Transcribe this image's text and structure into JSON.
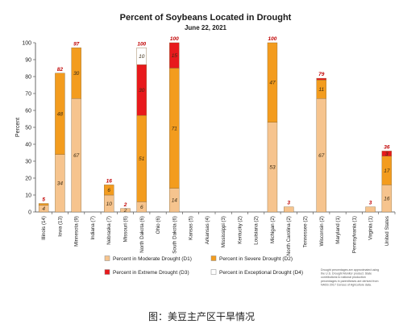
{
  "chart_data": {
    "type": "bar",
    "stacked": true,
    "title": "Percent of Soybeans Located in Drought",
    "subtitle": "June 22, 2021",
    "ylabel": "Percent",
    "ylim": [
      0,
      100
    ],
    "yticks": [
      0,
      10,
      20,
      30,
      40,
      50,
      60,
      70,
      80,
      90,
      100
    ],
    "grid": false,
    "categories": [
      "Illinois (14)",
      "Iowa (13)",
      "Minnesota (9)",
      "Indiana (7)",
      "Nebraska (7)",
      "Missouri (6)",
      "North Dakota (6)",
      "Ohio (6)",
      "South Dakota (6)",
      "Kansas (5)",
      "Arkansas (4)",
      "Mississippi (3)",
      "Kentucky (2)",
      "Louisiana (2)",
      "Michigan (2)",
      "North Carolina (2)",
      "Tennessee (2)",
      "Wisconsin (2)",
      "Maryland (1)",
      "Pennsylvania (1)",
      "Virginia (1)",
      "United States"
    ],
    "series": [
      {
        "name": "Percent in Moderate Drought (D1)",
        "color": "#f6c48e",
        "values": [
          4,
          34,
          67,
          0,
          10,
          2,
          6,
          0,
          14,
          0,
          0,
          0,
          0,
          0,
          53,
          3,
          0,
          67,
          0,
          0,
          3,
          16
        ]
      },
      {
        "name": "Percent in Severe Drought (D2)",
        "color": "#f39c1e",
        "values": [
          1,
          48,
          30,
          0,
          6,
          0,
          51,
          0,
          71,
          0,
          0,
          0,
          0,
          0,
          47,
          0,
          0,
          11,
          0,
          0,
          0,
          17
        ]
      },
      {
        "name": "Percent in Extreme Drought (D3)",
        "color": "#e8191c",
        "values": [
          0,
          0,
          0,
          0,
          0,
          0,
          30,
          0,
          15,
          0,
          0,
          0,
          0,
          0,
          0,
          0,
          0,
          1,
          0,
          0,
          0,
          3
        ]
      },
      {
        "name": "Percent in Exceptional Drought (D4)",
        "color": "#ffffff",
        "values": [
          0,
          0,
          0,
          0,
          0,
          0,
          10,
          0,
          0,
          0,
          0,
          0,
          0,
          0,
          0,
          0,
          0,
          0,
          0,
          0,
          0,
          0
        ]
      }
    ],
    "segment_labels": [
      [
        "4",
        "34",
        "67",
        "",
        "10",
        "2",
        "6",
        "",
        "14",
        "",
        "",
        "",
        "",
        "",
        "53",
        "",
        "",
        "67",
        "",
        "",
        "",
        "16"
      ],
      [
        "",
        "48",
        "30",
        "",
        "6",
        "",
        "51",
        "",
        "71",
        "",
        "",
        "",
        "",
        "",
        "47",
        "",
        "",
        "11",
        "",
        "",
        "",
        "17"
      ],
      [
        "",
        "",
        "",
        "",
        "",
        "",
        "30",
        "",
        "15",
        "",
        "",
        "",
        "",
        "",
        "",
        "",
        "",
        "",
        "",
        "",
        "",
        "3"
      ],
      [
        "",
        "",
        "",
        "",
        "",
        "",
        "10",
        "",
        "",
        "",
        "",
        "",
        "",
        "",
        "",
        "",
        "",
        "",
        "",
        "",
        "",
        ""
      ]
    ],
    "totals": [
      "5",
      "82",
      "97",
      "",
      "16",
      "2",
      "100",
      "",
      "100",
      "",
      "",
      "",
      "",
      "",
      "100",
      "3",
      "",
      "79",
      "",
      "",
      "3",
      "36"
    ],
    "legend_position": "bottom",
    "note": "Drought percentages are approximated using the U.S. Drought Monitor product. State contributions to national production percentages in parentheses are derived from NASS 2017 Census of Agriculture data."
  },
  "caption": "图：美豆主产区干旱情况"
}
